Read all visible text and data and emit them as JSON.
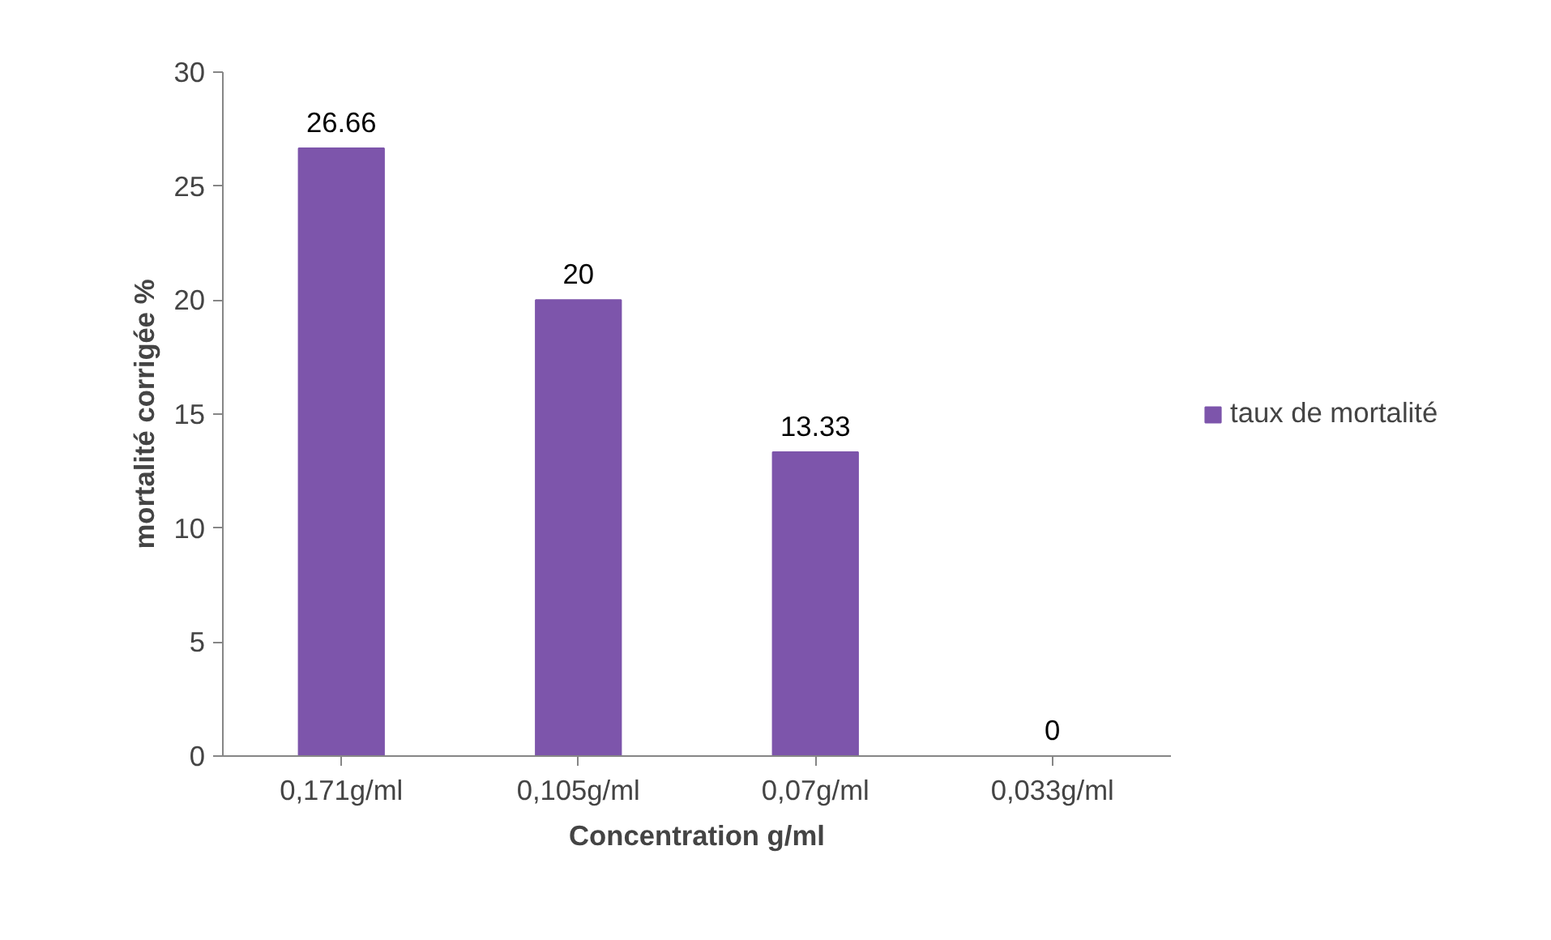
{
  "chart_data": {
    "type": "bar",
    "xlabel": "Concentration g/ml",
    "ylabel": "mortalité corrigée %",
    "categories": [
      "0,171g/ml",
      "0,105g/ml",
      "0,07g/ml",
      "0,033g/ml"
    ],
    "series": [
      {
        "name": "taux de mortalité",
        "color": "#7d55ab",
        "values": [
          26.66,
          20,
          13.33,
          0
        ]
      }
    ],
    "ylim": [
      0,
      30
    ],
    "yticks": [
      0,
      5,
      10,
      15,
      20,
      25,
      30
    ],
    "grid": false,
    "legend": "right",
    "data_labels": true
  }
}
